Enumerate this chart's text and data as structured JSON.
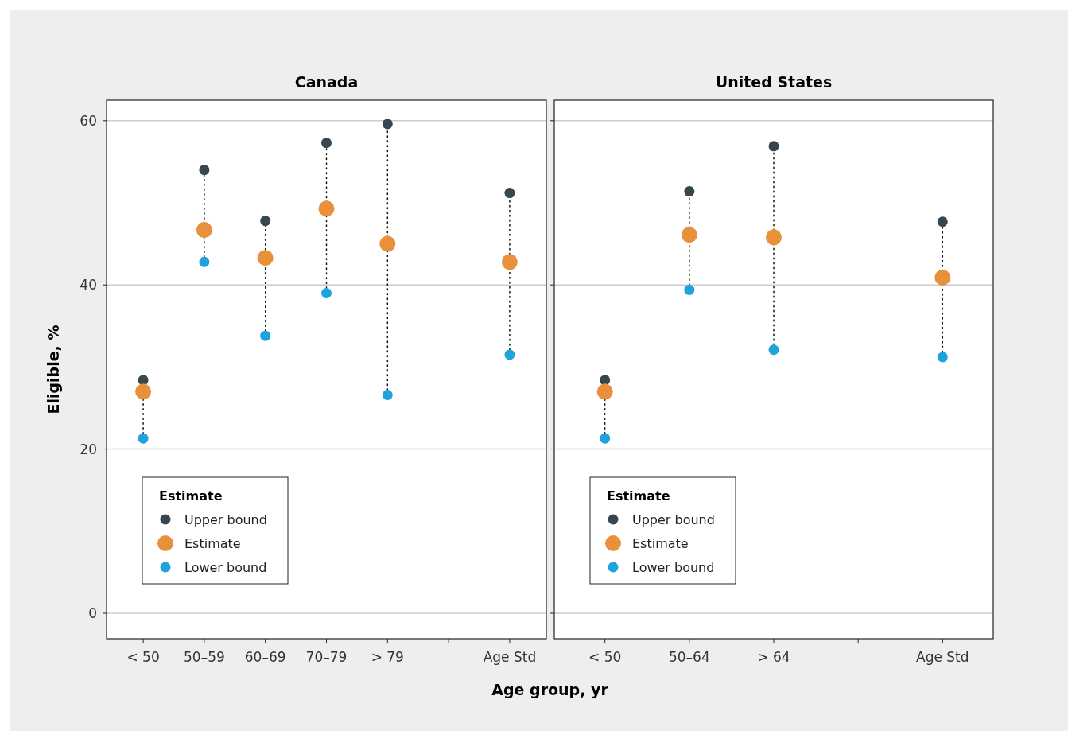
{
  "chart_data": [
    {
      "type": "scatter",
      "title": "Canada",
      "xlabel": "Age group, yr",
      "ylabel": "Eligible, %",
      "categories": [
        "< 50",
        "50–59",
        "60–69",
        "70–79",
        "> 79",
        null,
        "Age Std"
      ],
      "ylim": [
        -3.1,
        62.5
      ],
      "yticks": [
        0,
        20,
        40,
        60
      ],
      "grid": "y",
      "legend": "bottom left",
      "legend_title": "Estimate",
      "marker": "circle",
      "series": [
        {
          "name": "Upper bound",
          "color": "#37474f",
          "values": [
            28.4,
            54.0,
            47.8,
            57.3,
            59.6,
            null,
            51.2
          ]
        },
        {
          "name": "Estimate",
          "color": "#e8903a",
          "values": [
            27.0,
            46.7,
            43.3,
            49.3,
            45.0,
            null,
            42.8
          ]
        },
        {
          "name": "Lower bound",
          "color": "#1fa3dc",
          "values": [
            21.3,
            42.8,
            33.8,
            39.0,
            26.6,
            null,
            31.5
          ]
        }
      ]
    },
    {
      "type": "scatter",
      "title": "United States",
      "categories": [
        "< 50",
        "50–64",
        "> 64",
        null,
        "Age Std"
      ],
      "ylim": [
        -3.1,
        62.5
      ],
      "yticks": [
        0,
        20,
        40,
        60
      ],
      "grid": "y",
      "legend": "bottom left",
      "legend_title": "Estimate",
      "marker": "circle",
      "tick_labels": "x",
      "series": [
        {
          "name": "Upper bound",
          "color": "#37474f",
          "values": [
            28.4,
            51.4,
            56.9,
            null,
            47.7
          ]
        },
        {
          "name": "Estimate",
          "color": "#e8903a",
          "values": [
            27.0,
            46.1,
            45.8,
            null,
            40.9
          ]
        },
        {
          "name": "Lower bound",
          "color": "#1fa3dc",
          "values": [
            21.3,
            39.4,
            32.1,
            null,
            31.2
          ]
        }
      ]
    }
  ]
}
